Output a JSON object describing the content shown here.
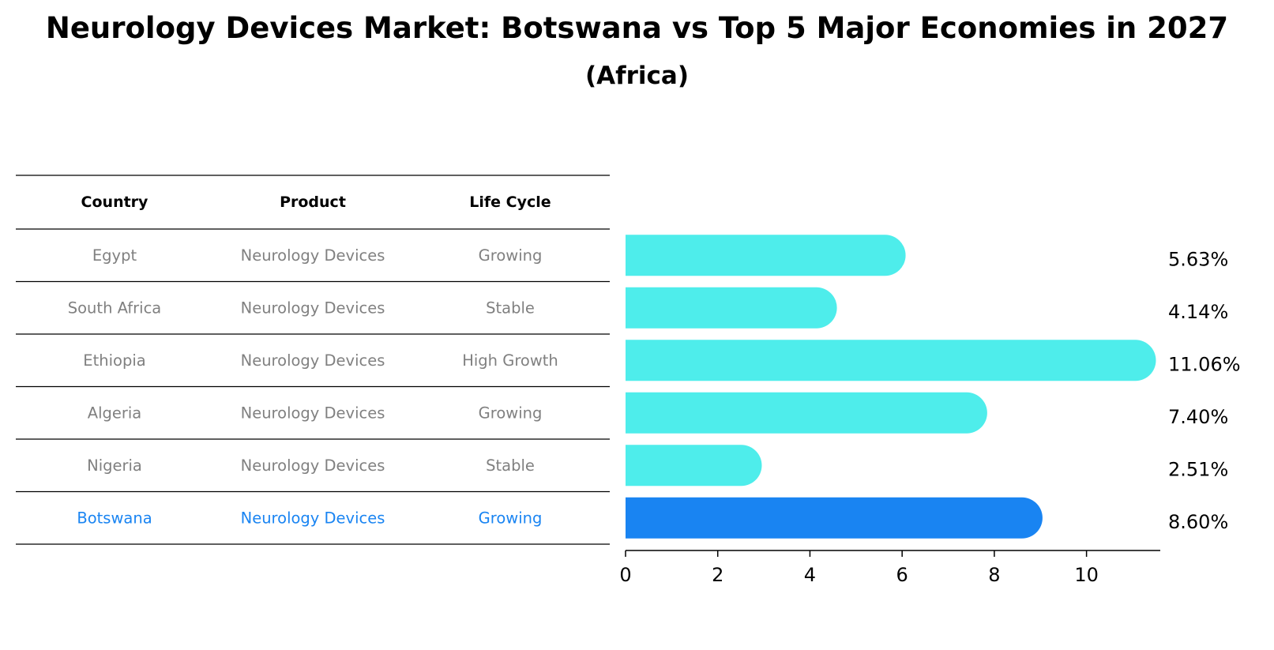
{
  "chart_data": {
    "type": "bar",
    "orientation": "horizontal",
    "title": "Neurology Devices Market: Botswana vs Top 5 Major Economies in 2027",
    "subtitle": "(Africa)",
    "table": {
      "columns": [
        "Country",
        "Product",
        "Life Cycle"
      ],
      "rows": [
        {
          "country": "Egypt",
          "product": "Neurology Devices",
          "life_cycle": "Growing",
          "highlight": false
        },
        {
          "country": "South Africa",
          "product": "Neurology Devices",
          "life_cycle": "Stable",
          "highlight": false
        },
        {
          "country": "Ethiopia",
          "product": "Neurology Devices",
          "life_cycle": "High Growth",
          "highlight": false
        },
        {
          "country": "Algeria",
          "product": "Neurology Devices",
          "life_cycle": "Growing",
          "highlight": false
        },
        {
          "country": "Nigeria",
          "product": "Neurology Devices",
          "life_cycle": "Stable",
          "highlight": false
        },
        {
          "country": "Botswana",
          "product": "Neurology Devices",
          "life_cycle": "Growing",
          "highlight": true
        }
      ]
    },
    "categories": [
      "Egypt",
      "South Africa",
      "Ethiopia",
      "Algeria",
      "Nigeria",
      "Botswana"
    ],
    "values": [
      5.63,
      4.14,
      11.06,
      7.4,
      2.51,
      8.6
    ],
    "value_labels": [
      "5.63%",
      "4.14%",
      "11.06%",
      "7.40%",
      "2.51%",
      "8.60%"
    ],
    "xlim": [
      0,
      11.6
    ],
    "xticks": [
      0,
      2,
      4,
      6,
      8,
      10
    ],
    "colors": {
      "bar": "#4EEDEB",
      "highlight_bar": "#1984F2",
      "highlight_text": "#1984F2",
      "row_text": "#808080",
      "header_text": "#000000",
      "line": "#000000"
    }
  }
}
